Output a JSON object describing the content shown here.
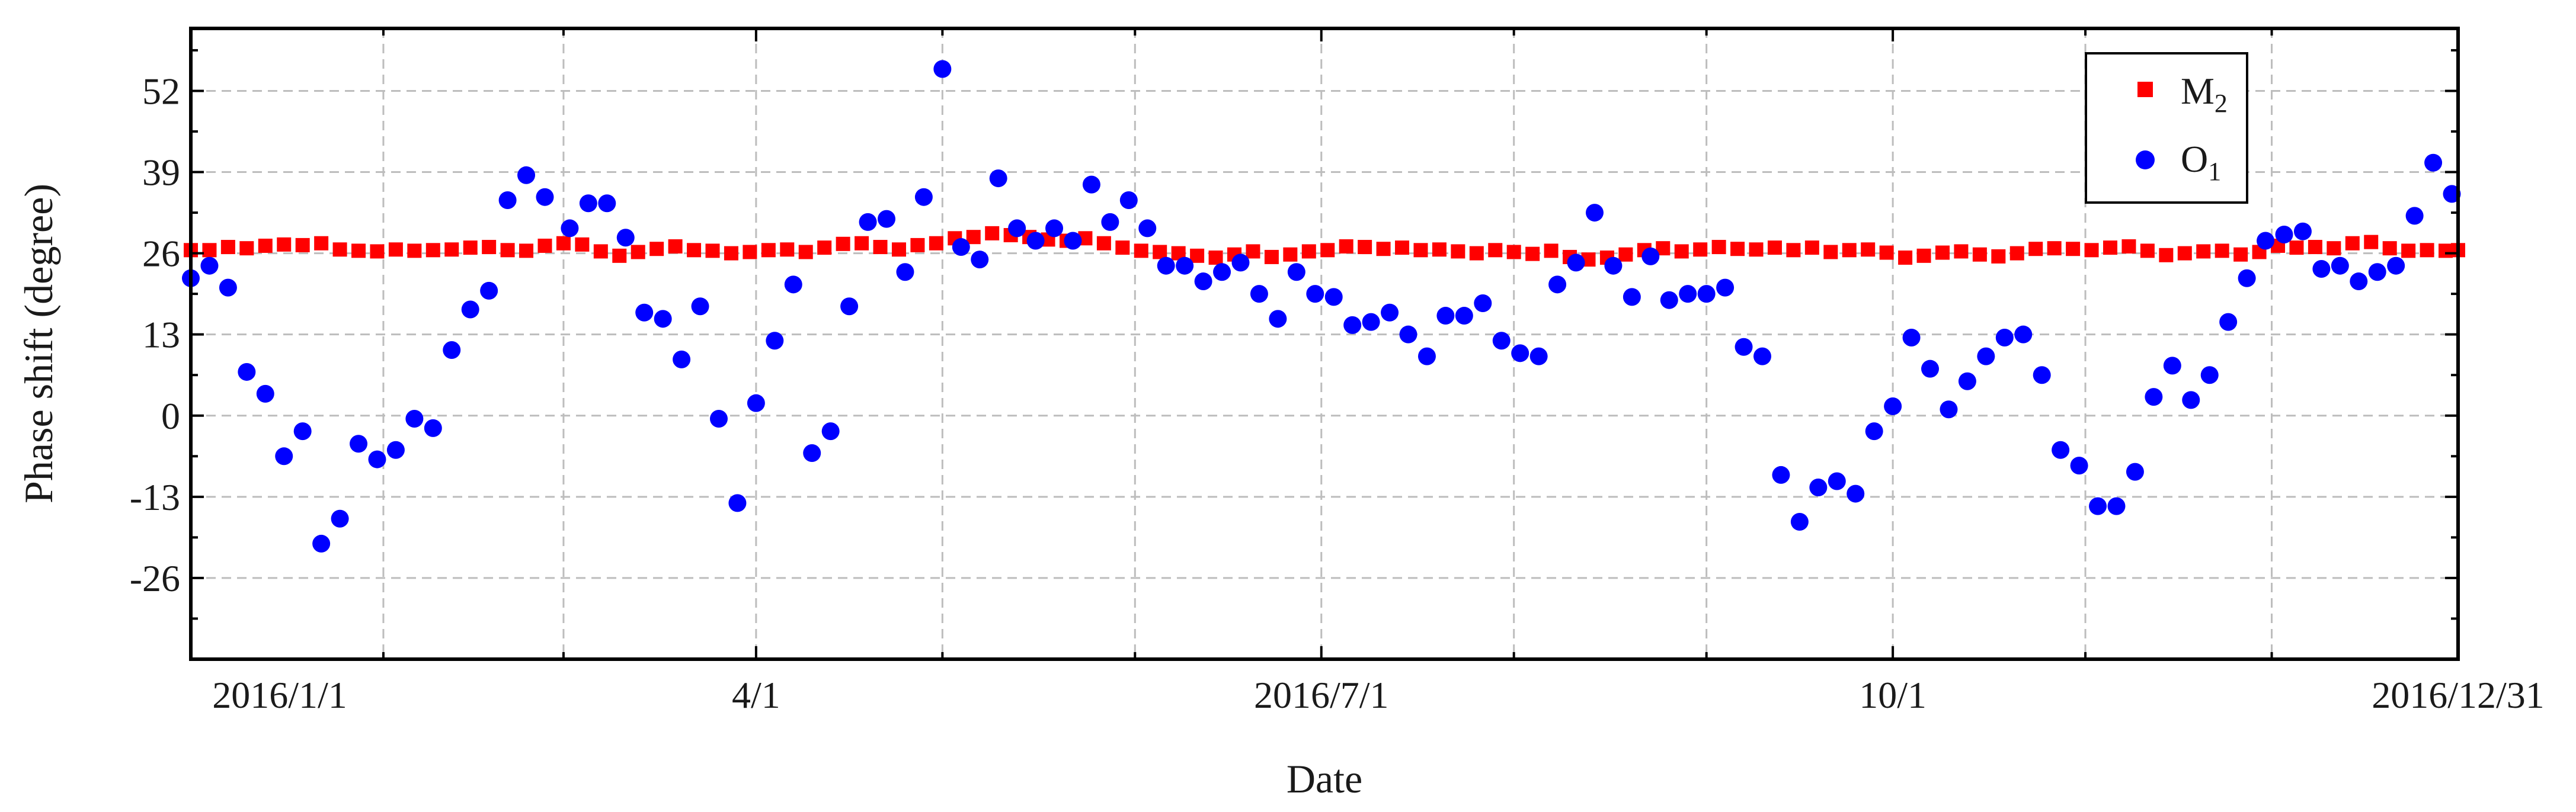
{
  "chart_data": {
    "type": "scatter",
    "xlabel": "Date",
    "ylabel": "Phase shift (degree)",
    "xlim": [
      "2016/1/1",
      "2016/12/31"
    ],
    "ylim": [
      -39,
      62
    ],
    "yticks": [
      52,
      39,
      26,
      13,
      0,
      -13,
      -26
    ],
    "ytick_labels": [
      "52",
      "39",
      "26",
      "13",
      "0",
      "-13",
      "-26"
    ],
    "xticks": [
      "2016/1/1",
      "2016/4/1",
      "2016/7/1",
      "2016/10/1",
      "2016/12/31"
    ],
    "xtick_labels": [
      "2016/1/1",
      "4/1",
      "2016/7/1",
      "10/1",
      "2016/12/31"
    ],
    "minor_xticks": [
      "2016/2/1",
      "2016/3/1",
      "2016/5/1",
      "2016/6/1",
      "2016/8/1",
      "2016/9/1",
      "2016/11/1",
      "2016/12/1"
    ],
    "grid": true,
    "legend": {
      "placement": "top-right"
    },
    "series": [
      {
        "name": "M",
        "name_sub": "2",
        "marker": "square",
        "color": "#ff0000",
        "points": [
          [
            "2016/1/1",
            26.5
          ],
          [
            "2016/1/4",
            26.5
          ],
          [
            "2016/1/7",
            27.0
          ],
          [
            "2016/1/10",
            26.8
          ],
          [
            "2016/1/13",
            27.2
          ],
          [
            "2016/1/16",
            27.4
          ],
          [
            "2016/1/19",
            27.3
          ],
          [
            "2016/1/22",
            27.6
          ],
          [
            "2016/1/25",
            26.6
          ],
          [
            "2016/1/28",
            26.4
          ],
          [
            "2016/1/31",
            26.3
          ],
          [
            "2016/2/3",
            26.6
          ],
          [
            "2016/2/6",
            26.4
          ],
          [
            "2016/2/9",
            26.5
          ],
          [
            "2016/2/12",
            26.6
          ],
          [
            "2016/2/15",
            26.9
          ],
          [
            "2016/2/18",
            27.0
          ],
          [
            "2016/2/21",
            26.5
          ],
          [
            "2016/2/24",
            26.4
          ],
          [
            "2016/2/27",
            27.2
          ],
          [
            "2016/3/1",
            27.6
          ],
          [
            "2016/3/4",
            27.4
          ],
          [
            "2016/3/7",
            26.3
          ],
          [
            "2016/3/10",
            25.6
          ],
          [
            "2016/3/13",
            26.2
          ],
          [
            "2016/3/16",
            26.7
          ],
          [
            "2016/3/19",
            27.1
          ],
          [
            "2016/3/22",
            26.5
          ],
          [
            "2016/3/25",
            26.4
          ],
          [
            "2016/3/28",
            26.0
          ],
          [
            "2016/3/31",
            26.2
          ],
          [
            "2016/4/3",
            26.5
          ],
          [
            "2016/4/6",
            26.6
          ],
          [
            "2016/4/9",
            26.2
          ],
          [
            "2016/4/12",
            26.9
          ],
          [
            "2016/4/15",
            27.5
          ],
          [
            "2016/4/18",
            27.6
          ],
          [
            "2016/4/21",
            27.0
          ],
          [
            "2016/4/24",
            26.6
          ],
          [
            "2016/4/27",
            27.3
          ],
          [
            "2016/4/30",
            27.6
          ],
          [
            "2016/5/3",
            28.4
          ],
          [
            "2016/5/6",
            28.6
          ],
          [
            "2016/5/9",
            29.2
          ],
          [
            "2016/5/12",
            28.9
          ],
          [
            "2016/5/15",
            28.6
          ],
          [
            "2016/5/18",
            28.2
          ],
          [
            "2016/5/21",
            28.0
          ],
          [
            "2016/5/24",
            28.4
          ],
          [
            "2016/5/27",
            27.6
          ],
          [
            "2016/5/30",
            26.9
          ],
          [
            "2016/6/2",
            26.4
          ],
          [
            "2016/6/5",
            26.2
          ],
          [
            "2016/6/8",
            26.0
          ],
          [
            "2016/6/11",
            25.6
          ],
          [
            "2016/6/14",
            25.3
          ],
          [
            "2016/6/17",
            25.8
          ],
          [
            "2016/6/20",
            26.3
          ],
          [
            "2016/6/23",
            25.4
          ],
          [
            "2016/6/26",
            25.8
          ],
          [
            "2016/6/29",
            26.3
          ],
          [
            "2016/7/2",
            26.5
          ],
          [
            "2016/7/5",
            27.1
          ],
          [
            "2016/7/8",
            27.0
          ],
          [
            "2016/7/11",
            26.7
          ],
          [
            "2016/7/14",
            26.9
          ],
          [
            "2016/7/17",
            26.5
          ],
          [
            "2016/7/20",
            26.6
          ],
          [
            "2016/7/23",
            26.3
          ],
          [
            "2016/7/26",
            26.0
          ],
          [
            "2016/7/29",
            26.5
          ],
          [
            "2016/8/1",
            26.2
          ],
          [
            "2016/8/4",
            25.9
          ],
          [
            "2016/8/7",
            26.4
          ],
          [
            "2016/8/10",
            25.4
          ],
          [
            "2016/8/13",
            25.0
          ],
          [
            "2016/8/16",
            25.3
          ],
          [
            "2016/8/19",
            25.8
          ],
          [
            "2016/8/22",
            26.5
          ],
          [
            "2016/8/25",
            26.8
          ],
          [
            "2016/8/28",
            26.3
          ],
          [
            "2016/8/31",
            26.6
          ],
          [
            "2016/9/3",
            27.0
          ],
          [
            "2016/9/6",
            26.7
          ],
          [
            "2016/9/9",
            26.6
          ],
          [
            "2016/9/12",
            26.9
          ],
          [
            "2016/9/15",
            26.5
          ],
          [
            "2016/9/18",
            26.9
          ],
          [
            "2016/9/21",
            26.2
          ],
          [
            "2016/9/24",
            26.5
          ],
          [
            "2016/9/27",
            26.6
          ],
          [
            "2016/9/30",
            26.1
          ],
          [
            "2016/10/3",
            25.3
          ],
          [
            "2016/10/6",
            25.6
          ],
          [
            "2016/10/9",
            26.1
          ],
          [
            "2016/10/12",
            26.3
          ],
          [
            "2016/10/15",
            25.8
          ],
          [
            "2016/10/18",
            25.5
          ],
          [
            "2016/10/21",
            26.0
          ],
          [
            "2016/10/24",
            26.7
          ],
          [
            "2016/10/27",
            26.8
          ],
          [
            "2016/10/30",
            26.7
          ],
          [
            "2016/11/2",
            26.5
          ],
          [
            "2016/11/5",
            26.9
          ],
          [
            "2016/11/8",
            27.1
          ],
          [
            "2016/11/11",
            26.4
          ],
          [
            "2016/11/14",
            25.7
          ],
          [
            "2016/11/17",
            26.0
          ],
          [
            "2016/11/20",
            26.3
          ],
          [
            "2016/11/23",
            26.4
          ],
          [
            "2016/11/26",
            25.8
          ],
          [
            "2016/11/29",
            26.2
          ],
          [
            "2016/12/2",
            27.2
          ],
          [
            "2016/12/5",
            26.9
          ],
          [
            "2016/12/8",
            27.0
          ],
          [
            "2016/12/11",
            26.8
          ],
          [
            "2016/12/14",
            27.6
          ],
          [
            "2016/12/17",
            27.8
          ],
          [
            "2016/12/20",
            26.8
          ],
          [
            "2016/12/23",
            26.4
          ],
          [
            "2016/12/26",
            26.5
          ],
          [
            "2016/12/29",
            26.4
          ],
          [
            "2016/12/31",
            26.5
          ]
        ]
      },
      {
        "name": "O",
        "name_sub": "1",
        "marker": "circle",
        "color": "#0000ff",
        "points": [
          [
            "2016/1/1",
            22.0
          ],
          [
            "2016/1/4",
            24.0
          ],
          [
            "2016/1/7",
            20.5
          ],
          [
            "2016/1/10",
            7.0
          ],
          [
            "2016/1/13",
            3.5
          ],
          [
            "2016/1/16",
            -6.5
          ],
          [
            "2016/1/19",
            -2.5
          ],
          [
            "2016/1/22",
            -20.5
          ],
          [
            "2016/1/25",
            -16.5
          ],
          [
            "2016/1/28",
            -4.5
          ],
          [
            "2016/1/31",
            -7.0
          ],
          [
            "2016/2/3",
            -5.5
          ],
          [
            "2016/2/6",
            -0.5
          ],
          [
            "2016/2/9",
            -2.0
          ],
          [
            "2016/2/12",
            10.5
          ],
          [
            "2016/2/15",
            17.0
          ],
          [
            "2016/2/18",
            20.0
          ],
          [
            "2016/2/21",
            34.5
          ],
          [
            "2016/2/24",
            38.5
          ],
          [
            "2016/2/27",
            35.0
          ],
          [
            "2016/3/2",
            30.0
          ],
          [
            "2016/3/5",
            34.0
          ],
          [
            "2016/3/8",
            34.0
          ],
          [
            "2016/3/11",
            28.5
          ],
          [
            "2016/3/14",
            16.5
          ],
          [
            "2016/3/17",
            15.5
          ],
          [
            "2016/3/20",
            9.0
          ],
          [
            "2016/3/23",
            17.5
          ],
          [
            "2016/3/26",
            -0.5
          ],
          [
            "2016/3/29",
            -14.0
          ],
          [
            "2016/4/1",
            2.0
          ],
          [
            "2016/4/4",
            12.0
          ],
          [
            "2016/4/7",
            21.0
          ],
          [
            "2016/4/10",
            -6.0
          ],
          [
            "2016/4/13",
            -2.5
          ],
          [
            "2016/4/16",
            17.5
          ],
          [
            "2016/4/19",
            31.0
          ],
          [
            "2016/4/22",
            31.5
          ],
          [
            "2016/4/25",
            23.0
          ],
          [
            "2016/4/28",
            35.0
          ],
          [
            "2016/5/1",
            55.5
          ],
          [
            "2016/5/4",
            27.0
          ],
          [
            "2016/5/7",
            25.0
          ],
          [
            "2016/5/10",
            38.0
          ],
          [
            "2016/5/13",
            30.0
          ],
          [
            "2016/5/16",
            28.0
          ],
          [
            "2016/5/19",
            30.0
          ],
          [
            "2016/5/22",
            28.0
          ],
          [
            "2016/5/25",
            37.0
          ],
          [
            "2016/5/28",
            31.0
          ],
          [
            "2016/5/31",
            34.5
          ],
          [
            "2016/6/3",
            30.0
          ],
          [
            "2016/6/6",
            24.0
          ],
          [
            "2016/6/9",
            24.0
          ],
          [
            "2016/6/12",
            21.5
          ],
          [
            "2016/6/15",
            23.0
          ],
          [
            "2016/6/18",
            24.5
          ],
          [
            "2016/6/21",
            19.5
          ],
          [
            "2016/6/24",
            15.5
          ],
          [
            "2016/6/27",
            23.0
          ],
          [
            "2016/6/30",
            19.5
          ],
          [
            "2016/7/3",
            19.0
          ],
          [
            "2016/7/6",
            14.5
          ],
          [
            "2016/7/9",
            15.0
          ],
          [
            "2016/7/12",
            16.5
          ],
          [
            "2016/7/15",
            13.0
          ],
          [
            "2016/7/18",
            9.5
          ],
          [
            "2016/7/21",
            16.0
          ],
          [
            "2016/7/24",
            16.0
          ],
          [
            "2016/7/27",
            18.0
          ],
          [
            "2016/7/30",
            12.0
          ],
          [
            "2016/8/2",
            10.0
          ],
          [
            "2016/8/5",
            9.5
          ],
          [
            "2016/8/8",
            21.0
          ],
          [
            "2016/8/11",
            24.5
          ],
          [
            "2016/8/14",
            32.5
          ],
          [
            "2016/8/17",
            24.0
          ],
          [
            "2016/8/20",
            19.0
          ],
          [
            "2016/8/23",
            25.5
          ],
          [
            "2016/8/26",
            18.5
          ],
          [
            "2016/8/29",
            19.5
          ],
          [
            "2016/9/1",
            19.5
          ],
          [
            "2016/9/4",
            20.5
          ],
          [
            "2016/9/7",
            11.0
          ],
          [
            "2016/9/10",
            9.5
          ],
          [
            "2016/9/13",
            -9.5
          ],
          [
            "2016/9/16",
            -17.0
          ],
          [
            "2016/9/19",
            -11.5
          ],
          [
            "2016/9/22",
            -10.5
          ],
          [
            "2016/9/25",
            -12.5
          ],
          [
            "2016/9/28",
            -2.5
          ],
          [
            "2016/10/1",
            1.5
          ],
          [
            "2016/10/4",
            12.5
          ],
          [
            "2016/10/7",
            7.5
          ],
          [
            "2016/10/10",
            1.0
          ],
          [
            "2016/10/13",
            5.5
          ],
          [
            "2016/10/16",
            9.5
          ],
          [
            "2016/10/19",
            12.5
          ],
          [
            "2016/10/22",
            13.0
          ],
          [
            "2016/10/25",
            6.5
          ],
          [
            "2016/10/28",
            -5.5
          ],
          [
            "2016/10/31",
            -8.0
          ],
          [
            "2016/11/3",
            -14.5
          ],
          [
            "2016/11/6",
            -14.5
          ],
          [
            "2016/11/9",
            -9.0
          ],
          [
            "2016/11/12",
            3.0
          ],
          [
            "2016/11/15",
            8.0
          ],
          [
            "2016/11/18",
            2.5
          ],
          [
            "2016/11/21",
            6.5
          ],
          [
            "2016/11/24",
            15.0
          ],
          [
            "2016/11/27",
            22.0
          ],
          [
            "2016/11/30",
            28.0
          ],
          [
            "2016/12/3",
            29.0
          ],
          [
            "2016/12/6",
            29.5
          ],
          [
            "2016/12/9",
            23.5
          ],
          [
            "2016/12/12",
            24.0
          ],
          [
            "2016/12/15",
            21.5
          ],
          [
            "2016/12/18",
            23.0
          ],
          [
            "2016/12/21",
            24.0
          ],
          [
            "2016/12/24",
            32.0
          ],
          [
            "2016/12/27",
            40.5
          ],
          [
            "2016/12/30",
            35.5
          ]
        ]
      }
    ]
  }
}
